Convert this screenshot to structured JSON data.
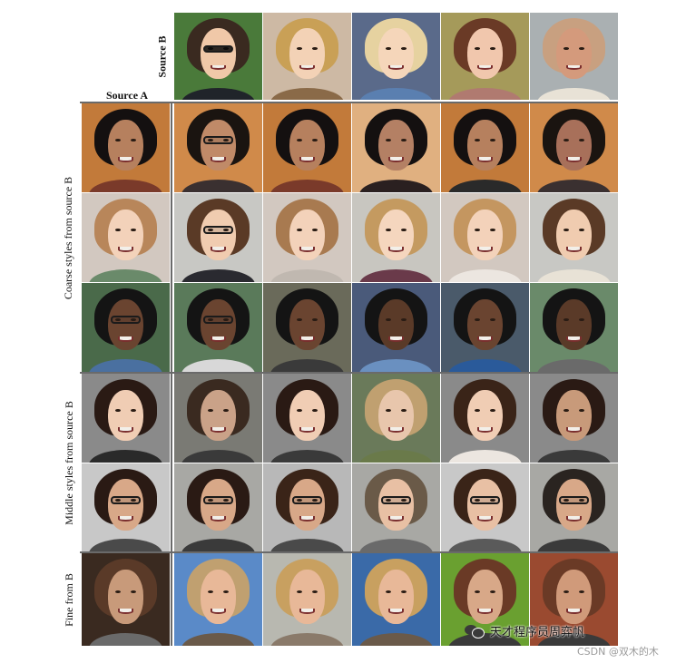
{
  "figure": {
    "label_source_b": "Source B",
    "label_source_a": "Source A",
    "rows": [
      {
        "label": "Coarse styles from source B",
        "top": 114,
        "height": 296
      },
      {
        "label": "Middle styles from source B",
        "top": 412,
        "height": 196
      },
      {
        "label": "Fine from B",
        "top": 610,
        "height": 102
      }
    ]
  },
  "watermark": {
    "icon": "wechat-icon",
    "text": "天才程序员周弈帆",
    "credit": "CSDN @双木的木"
  }
}
